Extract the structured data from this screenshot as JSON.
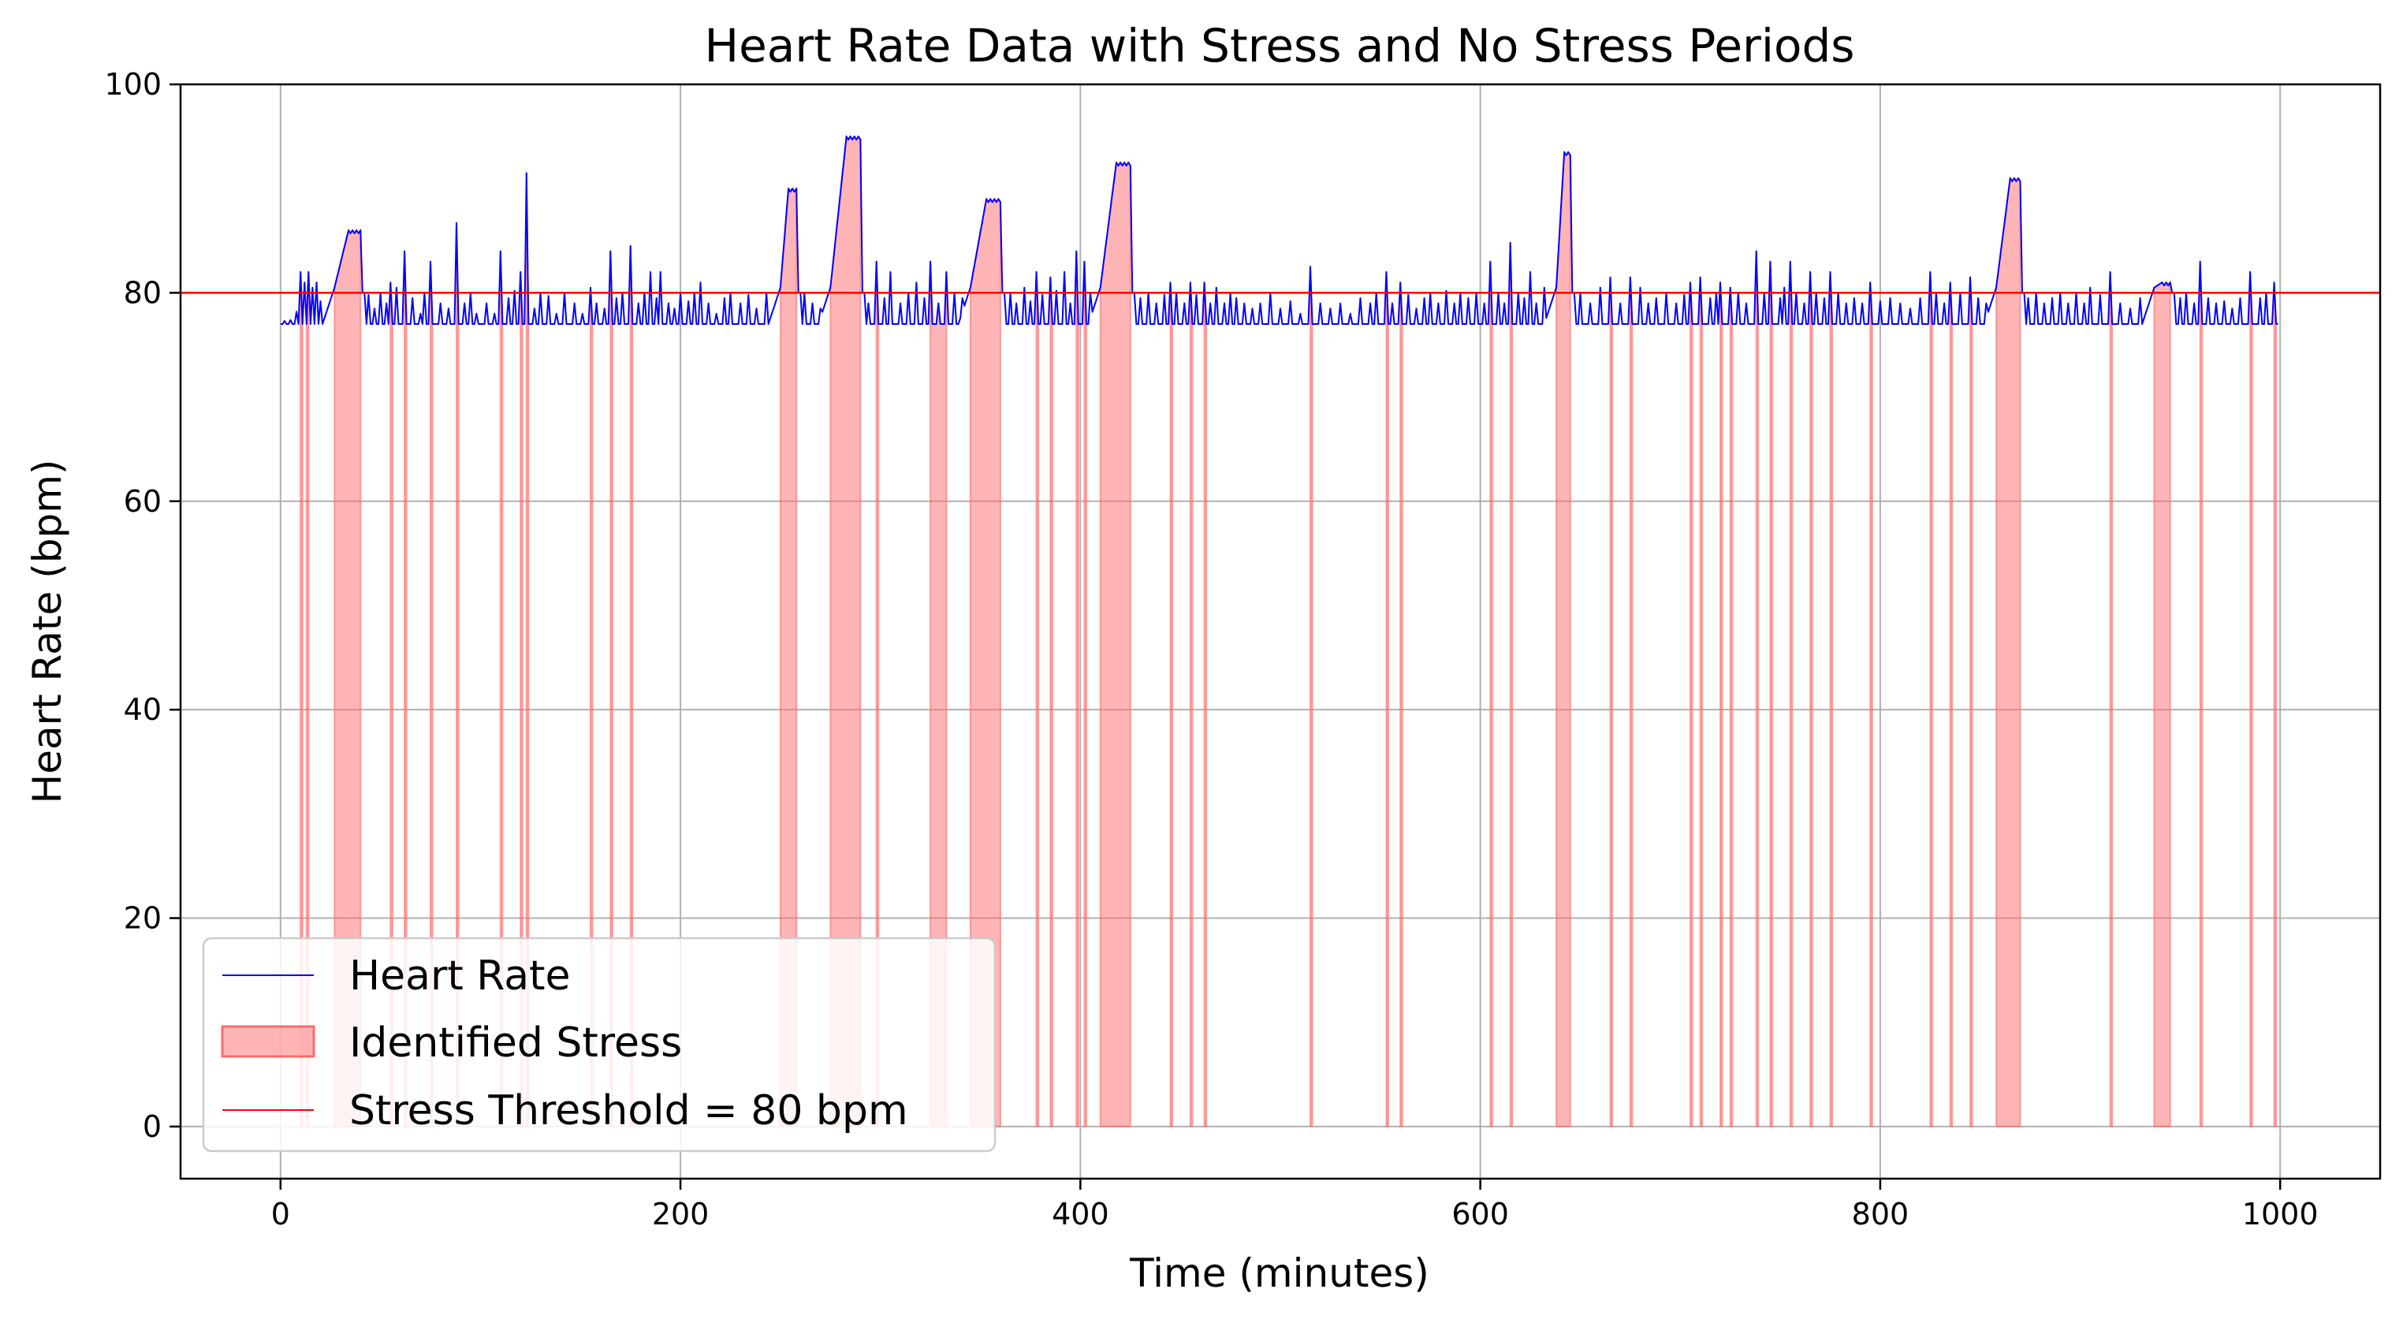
{
  "chart_data": {
    "type": "line",
    "title": "Heart Rate Data with Stress and No Stress Periods",
    "xlabel": "Time (minutes)",
    "ylabel": "Heart Rate (bpm)",
    "xlim": [
      -50,
      1050
    ],
    "ylim": [
      -5,
      100
    ],
    "xticks": [
      0,
      200,
      400,
      600,
      800,
      1000
    ],
    "yticks": [
      0,
      20,
      40,
      60,
      80,
      100
    ],
    "grid": true,
    "legend_position": "lower-left",
    "threshold": {
      "name": "Stress Threshold = 80 bpm",
      "value": 80,
      "color": "#ff0000"
    },
    "series": [
      {
        "name": "Heart Rate",
        "color": "#0000ff",
        "baseline": 77,
        "episodes": [
          [
            27,
            40,
            86
          ],
          [
            250,
            258,
            90
          ],
          [
            275,
            290,
            95
          ],
          [
            345,
            360,
            89
          ],
          [
            410,
            425,
            92.5
          ],
          [
            638,
            645,
            93.5
          ],
          [
            858,
            870,
            91
          ],
          [
            937,
            945,
            81
          ]
        ],
        "spikes": [
          [
            10,
            82
          ],
          [
            12,
            81
          ],
          [
            14,
            82
          ],
          [
            18,
            81
          ],
          [
            55,
            81
          ],
          [
            58,
            80.5
          ],
          [
            62,
            84
          ],
          [
            75,
            83
          ],
          [
            88,
            86.7
          ],
          [
            110,
            84
          ],
          [
            120,
            82
          ],
          [
            123,
            91.5
          ],
          [
            130,
            80
          ],
          [
            155,
            80.5
          ],
          [
            165,
            84
          ],
          [
            175,
            84.5
          ],
          [
            185,
            82
          ],
          [
            190,
            82
          ],
          [
            200,
            80
          ],
          [
            210,
            81
          ],
          [
            225,
            80
          ],
          [
            298,
            83
          ],
          [
            305,
            82
          ],
          [
            318,
            81
          ],
          [
            325,
            83
          ],
          [
            333,
            82
          ],
          [
            378,
            82
          ],
          [
            385,
            81.5
          ],
          [
            392,
            82
          ],
          [
            398,
            84
          ],
          [
            402,
            83
          ],
          [
            445,
            81
          ],
          [
            455,
            81
          ],
          [
            462,
            81
          ],
          [
            475,
            80
          ],
          [
            495,
            80
          ],
          [
            515,
            82.5
          ],
          [
            553,
            82
          ],
          [
            560,
            81
          ],
          [
            575,
            80
          ],
          [
            590,
            80
          ],
          [
            605,
            83
          ],
          [
            615,
            84.8
          ],
          [
            625,
            82
          ],
          [
            665,
            81.5
          ],
          [
            675,
            81.5
          ],
          [
            680,
            80.5
          ],
          [
            693,
            80
          ],
          [
            705,
            81
          ],
          [
            710,
            81.5
          ],
          [
            720,
            81
          ],
          [
            725,
            80.5
          ],
          [
            738,
            84
          ],
          [
            745,
            83
          ],
          [
            755,
            83
          ],
          [
            765,
            82
          ],
          [
            775,
            82
          ],
          [
            795,
            81
          ],
          [
            825,
            82
          ],
          [
            835,
            81
          ],
          [
            845,
            81.5
          ],
          [
            890,
            80
          ],
          [
            905,
            80.5
          ],
          [
            915,
            82
          ],
          [
            960,
            83
          ],
          [
            985,
            82
          ],
          [
            997,
            81
          ]
        ],
        "noise": [
          [
            2,
            77.3
          ],
          [
            5,
            77.4
          ],
          [
            8,
            78.2
          ],
          [
            16,
            80.5
          ],
          [
            20,
            79.2
          ],
          [
            23,
            78
          ],
          [
            44,
            79.8
          ],
          [
            47,
            78.5
          ],
          [
            50,
            80
          ],
          [
            53,
            79
          ],
          [
            66,
            79.5
          ],
          [
            70,
            78
          ],
          [
            72,
            80
          ],
          [
            80,
            79
          ],
          [
            84,
            78.5
          ],
          [
            92,
            79
          ],
          [
            95,
            80
          ],
          [
            98,
            78
          ],
          [
            103,
            79
          ],
          [
            107,
            78
          ],
          [
            114,
            79.5
          ],
          [
            117,
            80.2
          ],
          [
            127,
            78.5
          ],
          [
            134,
            79.7
          ],
          [
            138,
            78
          ],
          [
            142,
            80
          ],
          [
            147,
            79
          ],
          [
            151,
            78
          ],
          [
            158,
            79
          ],
          [
            162,
            78.5
          ],
          [
            168,
            79.5
          ],
          [
            171,
            80
          ],
          [
            179,
            79
          ],
          [
            182,
            80
          ],
          [
            188,
            79.5
          ],
          [
            194,
            79
          ],
          [
            197,
            78.5
          ],
          [
            204,
            79.2
          ],
          [
            207,
            80
          ],
          [
            214,
            79
          ],
          [
            218,
            78
          ],
          [
            222,
            79.5
          ],
          [
            230,
            79
          ],
          [
            234,
            79.8
          ],
          [
            238,
            78.5
          ],
          [
            243,
            80
          ],
          [
            246,
            78
          ],
          [
            262,
            80
          ],
          [
            266,
            79
          ],
          [
            270,
            78.5
          ],
          [
            294,
            79
          ],
          [
            302,
            79.5
          ],
          [
            310,
            79
          ],
          [
            314,
            80
          ],
          [
            322,
            79.5
          ],
          [
            329,
            79
          ],
          [
            337,
            80
          ],
          [
            341,
            79.5
          ],
          [
            365,
            80
          ],
          [
            368,
            79
          ],
          [
            372,
            80.5
          ],
          [
            375,
            79.2
          ],
          [
            381,
            79.8
          ],
          [
            388,
            80.2
          ],
          [
            395,
            79
          ],
          [
            405,
            80
          ],
          [
            430,
            79.5
          ],
          [
            434,
            80
          ],
          [
            438,
            79
          ],
          [
            442,
            79.8
          ],
          [
            448,
            80
          ],
          [
            452,
            79
          ],
          [
            458,
            79.8
          ],
          [
            465,
            79
          ],
          [
            468,
            80.5
          ],
          [
            472,
            79
          ],
          [
            478,
            79.5
          ],
          [
            482,
            79
          ],
          [
            486,
            78.5
          ],
          [
            490,
            79
          ],
          [
            500,
            78.5
          ],
          [
            505,
            79.2
          ],
          [
            510,
            78
          ],
          [
            520,
            79
          ],
          [
            525,
            78.5
          ],
          [
            530,
            79
          ],
          [
            535,
            78
          ],
          [
            540,
            79.5
          ],
          [
            545,
            79
          ],
          [
            548,
            80
          ],
          [
            556,
            79
          ],
          [
            564,
            79.8
          ],
          [
            568,
            78.5
          ],
          [
            572,
            79.5
          ],
          [
            579,
            79
          ],
          [
            583,
            80.2
          ],
          [
            587,
            79
          ],
          [
            594,
            79.5
          ],
          [
            598,
            80
          ],
          [
            602,
            79
          ],
          [
            609,
            80
          ],
          [
            612,
            79
          ],
          [
            619,
            80
          ],
          [
            622,
            79.5
          ],
          [
            628,
            79
          ],
          [
            632,
            80.5
          ],
          [
            650,
            80
          ],
          [
            655,
            79
          ],
          [
            660,
            80.5
          ],
          [
            670,
            79
          ],
          [
            684,
            79
          ],
          [
            688,
            79.5
          ],
          [
            698,
            79
          ],
          [
            702,
            79.8
          ],
          [
            715,
            79.5
          ],
          [
            718,
            80
          ],
          [
            729,
            80
          ],
          [
            733,
            79
          ],
          [
            742,
            80
          ],
          [
            750,
            79.5
          ],
          [
            752,
            80.5
          ],
          [
            758,
            80
          ],
          [
            762,
            79
          ],
          [
            768,
            80
          ],
          [
            772,
            79.5
          ],
          [
            779,
            80
          ],
          [
            783,
            79
          ],
          [
            787,
            79.5
          ],
          [
            791,
            79
          ],
          [
            800,
            79.2
          ],
          [
            805,
            79.5
          ],
          [
            810,
            79
          ],
          [
            815,
            78.5
          ],
          [
            820,
            79.5
          ],
          [
            828,
            80
          ],
          [
            832,
            79
          ],
          [
            840,
            80
          ],
          [
            849,
            79.5
          ],
          [
            853,
            79
          ],
          [
            874,
            79.5
          ],
          [
            878,
            80
          ],
          [
            882,
            79
          ],
          [
            886,
            79.5
          ],
          [
            894,
            79
          ],
          [
            898,
            80
          ],
          [
            902,
            79
          ],
          [
            910,
            79.8
          ],
          [
            920,
            79
          ],
          [
            925,
            78.5
          ],
          [
            930,
            79.5
          ],
          [
            950,
            79.5
          ],
          [
            953,
            80
          ],
          [
            957,
            79
          ],
          [
            964,
            79.5
          ],
          [
            968,
            79
          ],
          [
            972,
            79.2
          ],
          [
            976,
            78.5
          ],
          [
            980,
            79.5
          ],
          [
            990,
            79.5
          ],
          [
            993,
            80
          ]
        ]
      }
    ],
    "stress_fill": {
      "name": "Identified Stress",
      "color": "#ff6b6b",
      "opacity": 0.5,
      "bands": [
        [
          10,
          11
        ],
        [
          13,
          14
        ],
        [
          27,
          40
        ],
        [
          55,
          56
        ],
        [
          62,
          63
        ],
        [
          75,
          76
        ],
        [
          88,
          89
        ],
        [
          110,
          111
        ],
        [
          120,
          121
        ],
        [
          123,
          124
        ],
        [
          155,
          156
        ],
        [
          165,
          166
        ],
        [
          175,
          176
        ],
        [
          250,
          258
        ],
        [
          275,
          290
        ],
        [
          298,
          299
        ],
        [
          325,
          333
        ],
        [
          345,
          360
        ],
        [
          378,
          379
        ],
        [
          385,
          386
        ],
        [
          398,
          399
        ],
        [
          402,
          403
        ],
        [
          410,
          425
        ],
        [
          445,
          446
        ],
        [
          455,
          456
        ],
        [
          462,
          463
        ],
        [
          515,
          516
        ],
        [
          553,
          554
        ],
        [
          560,
          561
        ],
        [
          605,
          606
        ],
        [
          615,
          616
        ],
        [
          638,
          645
        ],
        [
          665,
          666
        ],
        [
          675,
          676
        ],
        [
          705,
          706
        ],
        [
          710,
          711
        ],
        [
          720,
          721
        ],
        [
          725,
          726
        ],
        [
          738,
          739
        ],
        [
          745,
          746
        ],
        [
          755,
          756
        ],
        [
          765,
          766
        ],
        [
          775,
          776
        ],
        [
          795,
          796
        ],
        [
          825,
          826
        ],
        [
          835,
          836
        ],
        [
          845,
          846
        ],
        [
          858,
          870
        ],
        [
          915,
          916
        ],
        [
          937,
          945
        ],
        [
          960,
          961
        ],
        [
          985,
          986
        ],
        [
          997,
          998
        ]
      ]
    }
  }
}
